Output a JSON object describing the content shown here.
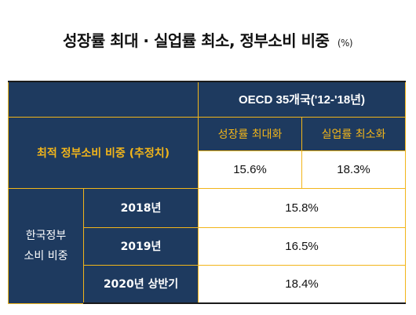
{
  "title": {
    "main": "성장률 최대 · 실업률 최소, 정부소비 비중",
    "unit": "(%)"
  },
  "table": {
    "header": "OECD 35개국('12-'18년)",
    "sub_headers": [
      "성장률 최대화",
      "실업률 최소화"
    ],
    "optimal_label": "최적 정부소비 비중 (추정치)",
    "optimal_values": [
      "15.6%",
      "18.3%"
    ],
    "korea_label_line1": "한국정부",
    "korea_label_line2": "소비 비중",
    "rows": [
      {
        "year": "2018년",
        "value": "15.8%"
      },
      {
        "year": "2019년",
        "value": "16.5%"
      },
      {
        "year": "2020년 상반기",
        "value": "18.4%"
      }
    ]
  },
  "colors": {
    "navy": "#1e3a5f",
    "gold": "#f2b51a"
  }
}
